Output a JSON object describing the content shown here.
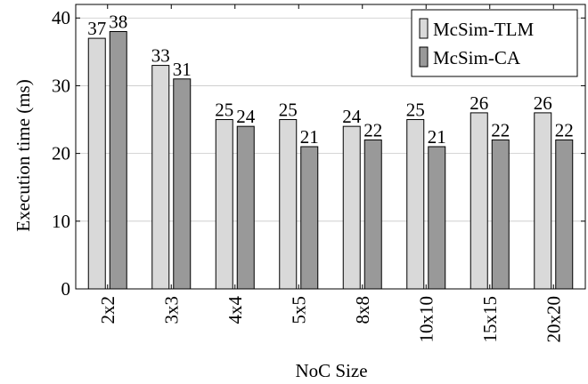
{
  "chart_data": {
    "type": "bar",
    "title": "",
    "xlabel": "NoC Size",
    "ylabel": "Execution time (ms)",
    "ylim": [
      0,
      42
    ],
    "yticks": [
      0,
      10,
      20,
      30,
      40
    ],
    "grid": "horizontal",
    "legend_position": "top-right",
    "categories": [
      "2x2",
      "3x3",
      "4x4",
      "5x5",
      "8x8",
      "10x10",
      "15x15",
      "20x20"
    ],
    "series": [
      {
        "name": "McSim-TLM",
        "color": "#d9d9d9",
        "values": [
          37,
          33,
          25,
          25,
          24,
          25,
          26,
          26
        ]
      },
      {
        "name": "McSim-CA",
        "color": "#999999",
        "values": [
          38,
          31,
          24,
          21,
          22,
          21,
          22,
          22
        ]
      }
    ]
  }
}
